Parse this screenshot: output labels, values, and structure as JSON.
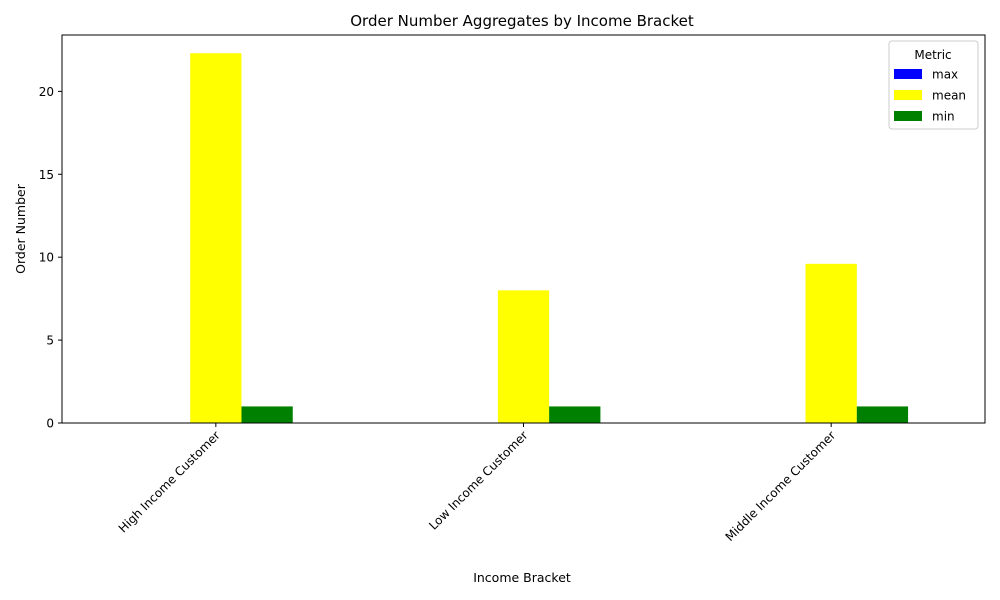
{
  "chart_data": {
    "type": "bar",
    "title": "Order Number Aggregates by Income Bracket",
    "xlabel": "Income Bracket",
    "ylabel": "Order Number",
    "categories": [
      "High Income Customer",
      "Low Income Customer",
      "Middle Income Customer"
    ],
    "series": [
      {
        "name": "max",
        "color": "#0000ff",
        "values": [
          null,
          null,
          null
        ]
      },
      {
        "name": "mean",
        "color": "#ffff00",
        "values": [
          22.3,
          8.0,
          9.6
        ]
      },
      {
        "name": "min",
        "color": "#008000",
        "values": [
          1,
          1,
          1
        ]
      }
    ],
    "ylim": [
      0,
      23.4
    ],
    "yticks": [
      0,
      5,
      10,
      15,
      20
    ],
    "grid": false,
    "legend": {
      "title": "Metric",
      "placement": "top-right"
    }
  }
}
